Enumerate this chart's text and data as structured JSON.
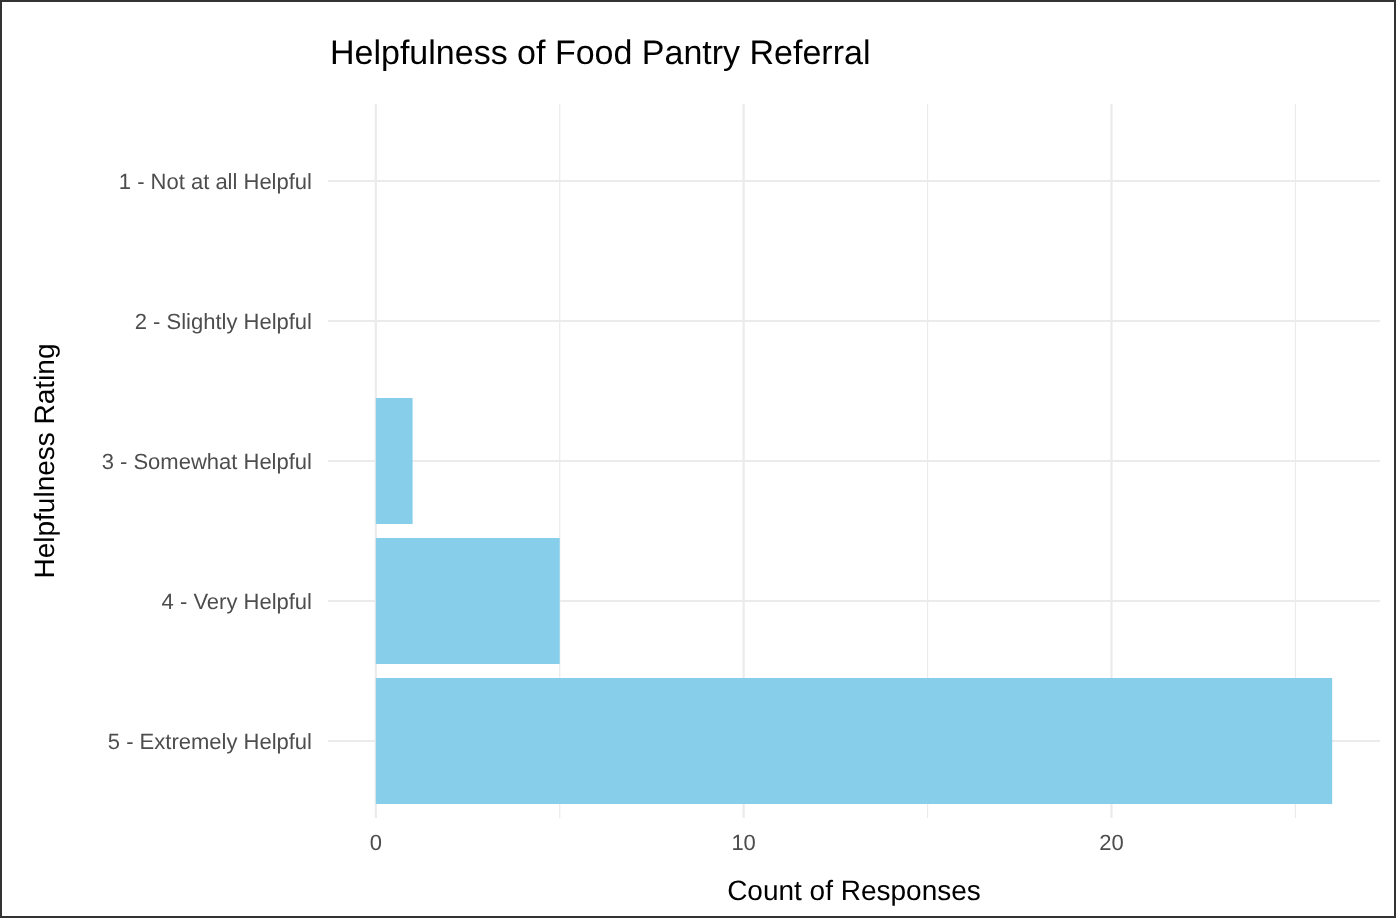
{
  "chart_data": {
    "type": "bar",
    "orientation": "horizontal",
    "title": "Helpfulness of Food Pantry Referral",
    "xlabel": "Count of Responses",
    "ylabel": "Helpfulness Rating",
    "categories": [
      "1 - Not at all Helpful",
      "2 - Slightly Helpful",
      "3 - Somewhat Helpful",
      "4 - Very Helpful",
      "5 - Extremely Helpful"
    ],
    "values": [
      0,
      0,
      1,
      5,
      26
    ],
    "color": "#87ceeb",
    "xlim": [
      -1.3,
      27.3
    ],
    "xticks": [
      0,
      {
        "value": 5,
        "label": null
      },
      10,
      {
        "value": 15,
        "label": null
      },
      20,
      {
        "value": 25,
        "label": null
      }
    ],
    "grid": true
  }
}
